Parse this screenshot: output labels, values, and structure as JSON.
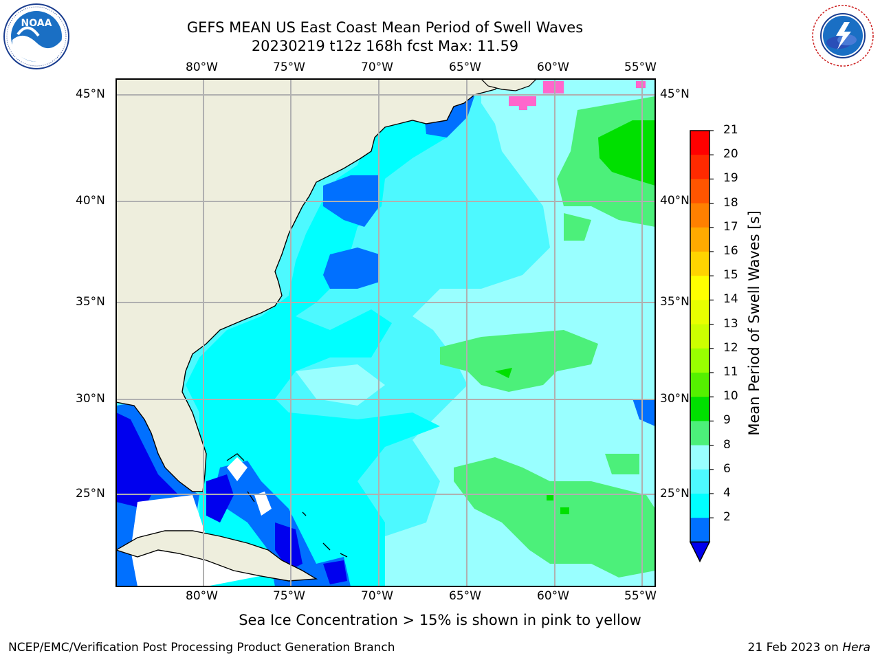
{
  "title": {
    "line1": "GEFS MEAN US East Coast Mean Period of Swell Waves",
    "line2": "20230219 t12z 168h fcst   Max: 11.59"
  },
  "map": {
    "lon_labels": [
      "80°W",
      "75°W",
      "70°W",
      "65°W",
      "60°W",
      "55°W"
    ],
    "lat_labels": [
      "45°N",
      "40°N",
      "35°N",
      "30°N",
      "25°N"
    ],
    "field_colors": {
      "land": "#eeeedd",
      "deep_blue": "#0000ee",
      "blue": "#0070ff",
      "cyan": "#00ffff",
      "light_cyan": "#4df9ff",
      "pale_cyan": "#99ffff",
      "light_green": "#4cf07a",
      "green": "#00e000",
      "missing": "#ffffff",
      "sea_ice": "#ff66cc"
    }
  },
  "colorbar": {
    "label": "Mean Period of Swell Waves [s]",
    "ticks": [
      "21",
      "20",
      "19",
      "18",
      "17",
      "16",
      "15",
      "14",
      "13",
      "12",
      "11",
      "10",
      "9",
      "8",
      "6",
      "4",
      "2"
    ],
    "colors": [
      "#ff0000",
      "#ff2a00",
      "#ff5500",
      "#ff8000",
      "#ffaa00",
      "#ffd400",
      "#ffff00",
      "#e8ff00",
      "#ccff00",
      "#99ff00",
      "#55f000",
      "#00e000",
      "#4cf07a",
      "#99ffff",
      "#4df9ff",
      "#00ffff",
      "#0070ff"
    ],
    "extend_color": "#0000ee"
  },
  "note": "Sea Ice Concentration > 15% is shown in pink to yellow",
  "footer": {
    "left": "NCEP/EMC/Verification Post Processing Product Generation Branch",
    "right_date": "21 Feb 2023 on ",
    "right_host": "Hera"
  },
  "logos": {
    "noaa_text": "NOAA",
    "nws_text": "NATIONAL WEATHER SERVICE"
  }
}
